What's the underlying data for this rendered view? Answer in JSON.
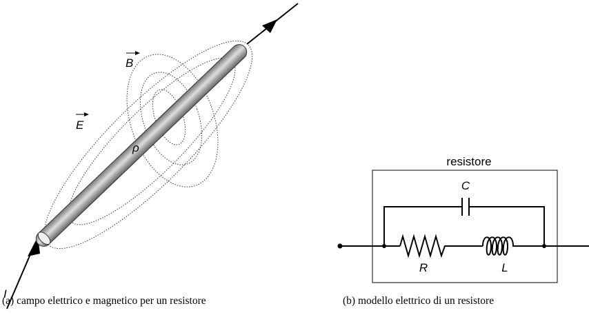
{
  "figure_a": {
    "labels": {
      "B": "B",
      "E": "E",
      "rho": "ρ",
      "I": "I"
    },
    "caption": "(a) campo elettrico e magnetico per un resistore"
  },
  "figure_b": {
    "box_label": "resistore",
    "labels": {
      "C": "C",
      "R": "R",
      "L": "L"
    },
    "caption": "(b) modello elettrico di un resistore"
  }
}
